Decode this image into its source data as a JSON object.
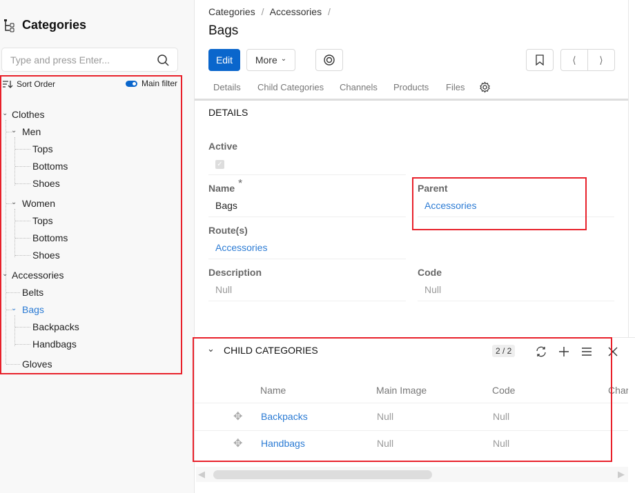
{
  "sidebar": {
    "title": "Categories",
    "search_placeholder": "Type and press Enter...",
    "sort_label": "Sort Order",
    "main_filter_label": "Main filter",
    "main_filter_on": true,
    "tree": [
      {
        "label": "Clothes",
        "expanded": true
      },
      {
        "label": "Men",
        "expanded": true
      },
      {
        "label": "Tops"
      },
      {
        "label": "Bottoms"
      },
      {
        "label": "Shoes"
      },
      {
        "label": "Women",
        "expanded": true
      },
      {
        "label": "Tops"
      },
      {
        "label": "Bottoms"
      },
      {
        "label": "Shoes"
      },
      {
        "label": "Accessories",
        "expanded": true
      },
      {
        "label": "Belts"
      },
      {
        "label": "Bags",
        "expanded": true,
        "selected": true
      },
      {
        "label": "Backpacks"
      },
      {
        "label": "Handbags"
      },
      {
        "label": "Gloves"
      }
    ]
  },
  "breadcrumb": [
    "Categories",
    "Accessories"
  ],
  "page_title": "Bags",
  "toolbar": {
    "edit": "Edit",
    "more": "More"
  },
  "tabs": [
    "Details",
    "Child Categories",
    "Channels",
    "Products",
    "Files"
  ],
  "details": {
    "section_title": "DETAILS",
    "active_label": "Active",
    "active_checked": true,
    "name_label": "Name",
    "name_required": "*",
    "name_value": "Bags",
    "parent_label": "Parent",
    "parent_value": "Accessories",
    "routes_label": "Route(s)",
    "routes_value": "Accessories",
    "description_label": "Description",
    "description_value": "Null",
    "code_label": "Code",
    "code_value": "Null"
  },
  "child_categories": {
    "title": "CHILD CATEGORIES",
    "count": "2 / 2",
    "columns": [
      "Name",
      "Main Image",
      "Code",
      "Char"
    ],
    "rows": [
      {
        "name": "Backpacks",
        "main_image": "Null",
        "code": "Null"
      },
      {
        "name": "Handbags",
        "main_image": "Null",
        "code": "Null"
      }
    ]
  },
  "colors": {
    "accent": "#0a66cc",
    "link": "#2b7bd4",
    "highlight": "#e8202a"
  }
}
